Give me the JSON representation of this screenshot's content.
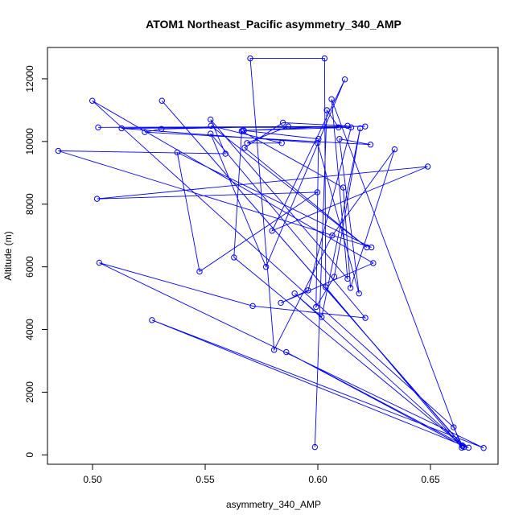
{
  "chart_data": {
    "type": "line",
    "title": "ATOM1 Northeast_Pacific asymmetry_340_AMP",
    "xlabel": "asymmetry_340_AMP",
    "ylabel": "Altitude (m)",
    "xlim": [
      0.48,
      0.68
    ],
    "ylim": [
      -300,
      13000
    ],
    "xticks": [
      0.5,
      0.55,
      0.6,
      0.65
    ],
    "xtick_labels": [
      "0.50",
      "0.55",
      "0.60",
      "0.65"
    ],
    "yticks": [
      0,
      2000,
      4000,
      6000,
      8000,
      10000,
      12000
    ],
    "ytick_labels": [
      "0",
      "2000",
      "4000",
      "6000",
      "8000",
      "10000",
      "12000"
    ],
    "grid": false,
    "series": [
      {
        "color": "#0000ff",
        "marker": "open-circle",
        "points": [
          [
            0.5987,
            250
          ],
          [
            0.604,
            11000
          ],
          [
            0.6092,
            10450
          ],
          [
            0.5025,
            10450
          ],
          [
            0.621,
            10480
          ],
          [
            0.5129,
            10420
          ],
          [
            0.5999,
            9950
          ],
          [
            0.6183,
            5150
          ],
          [
            0.6096,
            10080
          ],
          [
            0.6234,
            9900
          ],
          [
            0.5232,
            10300
          ],
          [
            0.5306,
            10400
          ],
          [
            0.5869,
            10480
          ],
          [
            0.5686,
            9950
          ],
          [
            0.584,
            9950
          ],
          [
            0.5526,
            10500
          ],
          [
            0.6218,
            6620
          ],
          [
            0.5675,
            9800
          ],
          [
            0.5845,
            10600
          ],
          [
            0.6132,
            10500
          ],
          [
            0.5672,
            10350
          ],
          [
            0.6003,
            10080
          ],
          [
            0.5992,
            4720
          ],
          [
            0.6073,
            5680
          ],
          [
            0.6188,
            10420
          ],
          [
            0.6017,
            4400
          ],
          [
            0.5897,
            5150
          ],
          [
            0.6649,
            250
          ],
          [
            0.5308,
            11300
          ],
          [
            0.6641,
            300
          ],
          [
            0.5628,
            6300
          ],
          [
            0.5662,
            10330
          ],
          [
            0.6113,
            8530
          ],
          [
            0.6145,
            5330
          ],
          [
            0.6341,
            9750
          ],
          [
            0.6064,
            7000
          ],
          [
            0.5806,
            3350
          ],
          [
            0.57,
            12650
          ],
          [
            0.603,
            12650
          ],
          [
            0.6035,
            5350
          ],
          [
            0.6639,
            230
          ],
          [
            0.6061,
            11350
          ],
          [
            0.6132,
            5620
          ],
          [
            0.5524,
            10700
          ],
          [
            0.559,
            9610
          ],
          [
            0.4848,
            9700
          ],
          [
            0.6238,
            6620
          ],
          [
            0.5376,
            9650
          ],
          [
            0.5475,
            5850
          ],
          [
            0.5998,
            8380
          ],
          [
            0.502,
            8170
          ],
          [
            0.6488,
            9200
          ],
          [
            0.5797,
            7150
          ],
          [
            0.612,
            11980
          ],
          [
            0.577,
            6000
          ],
          [
            0.5524,
            10250
          ],
          [
            0.6211,
            4370
          ],
          [
            0.5711,
            4750
          ],
          [
            0.503,
            6130
          ],
          [
            0.6736,
            220
          ],
          [
            0.5264,
            4300
          ],
          [
            0.6669,
            230
          ],
          [
            0.586,
            3280
          ],
          [
            0.6643,
            280
          ],
          [
            0.6603,
            880
          ],
          [
            0.4999,
            11300
          ],
          [
            0.6246,
            6120
          ],
          [
            0.5836,
            4850
          ],
          [
            0.5957,
            5250
          ],
          [
            0.6148,
            10450
          ],
          [
            0.5667,
            10350
          ]
        ]
      }
    ]
  }
}
